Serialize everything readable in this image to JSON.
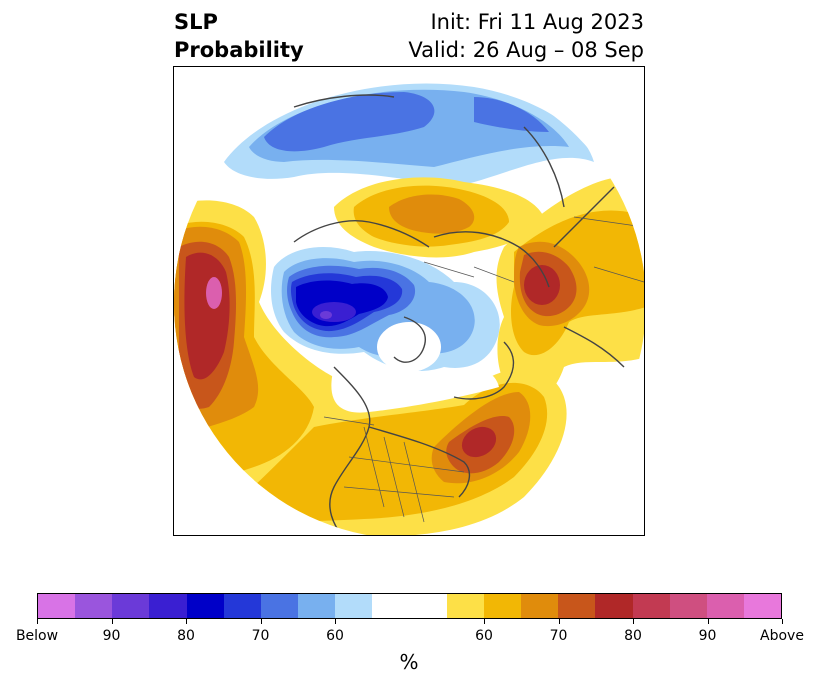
{
  "title": {
    "left_line1": "SLP",
    "left_line2": "Probability",
    "right_line1": "Init: Fri 11 Aug 2023",
    "right_line2": "Valid: 26 Aug – 08 Sep"
  },
  "colorbar": {
    "colors": [
      "#d873e6",
      "#9a55dd",
      "#6b3ad8",
      "#3a1fd2",
      "#0000c8",
      "#2438d8",
      "#4a73e3",
      "#78b0ef",
      "#b2dcfa",
      "#ffffff",
      "#ffffff",
      "#fde047",
      "#f2b705",
      "#e08c0c",
      "#c8561b",
      "#b02828",
      "#c23a52",
      "#cf4f80",
      "#db5fae",
      "#e878dc"
    ],
    "tick_labels": [
      "Below",
      "90",
      "80",
      "70",
      "60",
      "60",
      "70",
      "80",
      "90",
      "Above"
    ],
    "unit_label": "%"
  },
  "map": {
    "levels": {
      "above_60": "#fde047",
      "above_65": "#f2b705",
      "above_70": "#e08c0c",
      "above_75": "#c8561b",
      "above_80": "#b02828",
      "above_85": "#c23a52",
      "above_above": "#db5fae",
      "below_60": "#b2dcfa",
      "below_65": "#78b0ef",
      "below_70": "#4a73e3",
      "below_75": "#2438d8",
      "below_80": "#0000c8",
      "below_85": "#3a1fd2",
      "below_90": "#6b3ad8",
      "below_below": "#9a55dd"
    }
  }
}
